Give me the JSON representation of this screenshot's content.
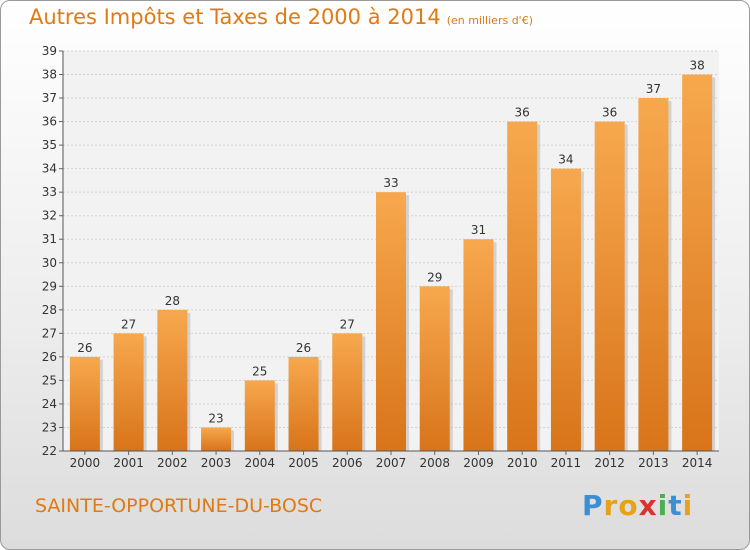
{
  "title": "Autres Impôts et Taxes de 2000 à 2014",
  "unit_label": "(en milliers d'€)",
  "commune": "SAINTE-OPPORTUNE-DU-BOSC",
  "logo": {
    "p": "P",
    "r": "r",
    "o": "o",
    "x": "x",
    "i": "i",
    "t": "t",
    "i2": "i"
  },
  "colors": {
    "bar_top": "#f7a84e",
    "bar_bottom": "#d8741a",
    "title": "#e07a12"
  },
  "chart_data": {
    "type": "bar",
    "categories": [
      "2000",
      "2001",
      "2002",
      "2003",
      "2004",
      "2005",
      "2006",
      "2007",
      "2008",
      "2009",
      "2010",
      "2011",
      "2012",
      "2013",
      "2014"
    ],
    "values": [
      26,
      27,
      28,
      23,
      25,
      26,
      27,
      33,
      29,
      31,
      36,
      34,
      36,
      37,
      38
    ],
    "ylim": [
      22,
      39
    ],
    "yticks": [
      22,
      23,
      24,
      25,
      26,
      27,
      28,
      29,
      30,
      31,
      32,
      33,
      34,
      35,
      36,
      37,
      38,
      39
    ],
    "grid": true
  }
}
